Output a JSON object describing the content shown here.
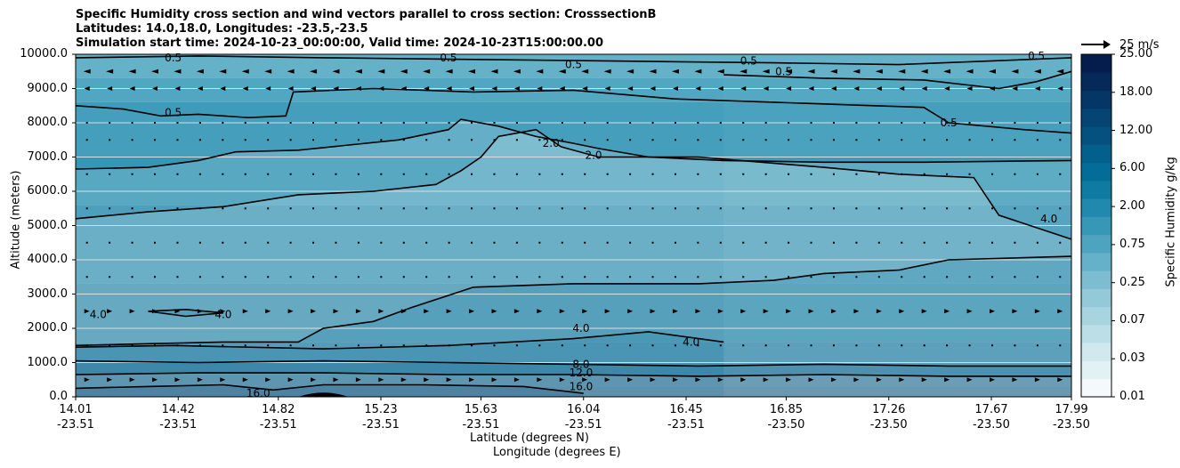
{
  "chart_data": {
    "type": "heatmap",
    "title_lines": [
      "Specific Humidity cross section and wind vectors parallel to cross section: CrosssectionB",
      "Latitudes: 14.0,18.0, Longitudes: -23.5,-23.5",
      "Simulation start time: 2024-10-23_00:00:00, Valid time: 2024-10-23T15:00:00.00"
    ],
    "xlabel_lines": [
      "Latitude (degrees N)",
      "Longitude (degrees E)"
    ],
    "ylabel": "Altitude (meters)",
    "x_tick_lat": [
      "14.01",
      "14.42",
      "14.82",
      "15.23",
      "15.63",
      "16.04",
      "16.45",
      "16.85",
      "17.26",
      "17.67",
      "17.99"
    ],
    "x_tick_lon": [
      "-23.51",
      "-23.51",
      "-23.51",
      "-23.51",
      "-23.51",
      "-23.51",
      "-23.51",
      "-23.50",
      "-23.50",
      "-23.50",
      "-23.50"
    ],
    "x_tick_values": [
      14.01,
      14.42,
      14.82,
      15.23,
      15.63,
      16.04,
      16.45,
      16.85,
      17.26,
      17.67,
      17.99
    ],
    "y_tick_labels": [
      "0.0",
      "1000.0",
      "2000.0",
      "3000.0",
      "4000.0",
      "5000.0",
      "6000.0",
      "7000.0",
      "8000.0",
      "9000.0",
      "10000.0"
    ],
    "y_tick_values": [
      0,
      1000,
      2000,
      3000,
      4000,
      5000,
      6000,
      7000,
      8000,
      9000,
      10000
    ],
    "xlim": [
      14.01,
      17.99
    ],
    "ylim": [
      0,
      10000
    ],
    "grid": "horizontal",
    "colorbar": {
      "label": "Specific Humidity g/kg",
      "tick_labels": [
        "0.01",
        "0.03",
        "0.07",
        "0.25",
        "0.75",
        "2.00",
        "6.00",
        "12.00",
        "18.00",
        "25.00"
      ],
      "levels": [
        "0.01",
        "0.02",
        "0.03",
        "0.05",
        "0.07",
        "0.1",
        "0.25",
        "0.5",
        "0.75",
        "1.0",
        "2.00",
        "4.0",
        "6.00",
        "8.0",
        "12.00",
        "16.0",
        "18.00",
        "20.0",
        "25.00"
      ],
      "colors": [
        "#f4fafb",
        "#e2f1f4",
        "#d0e8ee",
        "#bcdfe7",
        "#a8d4e0",
        "#93c9d9",
        "#7cbdd1",
        "#65b1c9",
        "#4ea4c0",
        "#3797b7",
        "#2289ae",
        "#0f7ba3",
        "#036d98",
        "#035f8c",
        "#045180",
        "#054473",
        "#053766",
        "#052a59",
        "#041d4d"
      ]
    },
    "vector_key": "25 m/s",
    "contour_labels": [
      {
        "text": "0.5",
        "x": 14.4,
        "y": 9900
      },
      {
        "text": "0.5",
        "x": 15.5,
        "y": 9900
      },
      {
        "text": "0.5",
        "x": 16.0,
        "y": 9700
      },
      {
        "text": "0.5",
        "x": 16.7,
        "y": 9800
      },
      {
        "text": "0.5",
        "x": 16.84,
        "y": 9500
      },
      {
        "text": "0.5",
        "x": 17.85,
        "y": 9950
      },
      {
        "text": "0.5",
        "x": 17.5,
        "y": 8000
      },
      {
        "text": "0.5",
        "x": 14.4,
        "y": 8300
      },
      {
        "text": "2.0",
        "x": 15.91,
        "y": 7400
      },
      {
        "text": "2.0",
        "x": 16.08,
        "y": 7050
      },
      {
        "text": "4.0",
        "x": 17.9,
        "y": 5200
      },
      {
        "text": "4.0",
        "x": 14.1,
        "y": 2400
      },
      {
        "text": "4.0",
        "x": 14.6,
        "y": 2400
      },
      {
        "text": "4.0",
        "x": 16.03,
        "y": 2000
      },
      {
        "text": "4.0",
        "x": 16.47,
        "y": 1600
      },
      {
        "text": "8.0",
        "x": 16.03,
        "y": 950
      },
      {
        "text": "12.0",
        "x": 16.03,
        "y": 700
      },
      {
        "text": "16.0",
        "x": 16.03,
        "y": 300
      },
      {
        "text": "16.0",
        "x": 14.74,
        "y": 100
      }
    ],
    "contours": [
      {
        "level": "0.5",
        "points": [
          [
            14.01,
            8500
          ],
          [
            14.2,
            8400
          ],
          [
            14.35,
            8200
          ],
          [
            14.5,
            8250
          ],
          [
            14.7,
            8150
          ],
          [
            14.85,
            8200
          ],
          [
            14.88,
            8900
          ],
          [
            15.2,
            9000
          ],
          [
            15.6,
            8900
          ],
          [
            16.0,
            8950
          ],
          [
            16.4,
            8700
          ],
          [
            16.8,
            8600
          ],
          [
            17.2,
            8500
          ],
          [
            17.4,
            8450
          ],
          [
            17.5,
            8000
          ],
          [
            17.8,
            7800
          ],
          [
            17.99,
            7700
          ]
        ]
      },
      {
        "level": "0.5",
        "points": [
          [
            16.6,
            9400
          ],
          [
            17.0,
            9300
          ],
          [
            17.4,
            9250
          ],
          [
            17.7,
            9000
          ],
          [
            17.85,
            9200
          ],
          [
            17.99,
            9500
          ]
        ]
      },
      {
        "level": "0.5",
        "points": [
          [
            14.01,
            9900
          ],
          [
            14.5,
            9950
          ],
          [
            15.0,
            9900
          ],
          [
            15.6,
            9850
          ],
          [
            16.2,
            9800
          ],
          [
            16.8,
            9750
          ],
          [
            17.3,
            9700
          ],
          [
            17.99,
            9900
          ]
        ]
      },
      {
        "level": "2.0",
        "points": [
          [
            14.01,
            6650
          ],
          [
            14.3,
            6700
          ],
          [
            14.5,
            6900
          ],
          [
            14.65,
            7150
          ],
          [
            14.9,
            7200
          ],
          [
            15.3,
            7500
          ],
          [
            15.5,
            7800
          ],
          [
            15.55,
            8100
          ],
          [
            15.7,
            7900
          ],
          [
            15.85,
            7600
          ],
          [
            16.0,
            7400
          ],
          [
            16.1,
            7250
          ],
          [
            16.3,
            7000
          ],
          [
            16.6,
            6900
          ],
          [
            17.0,
            6850
          ],
          [
            17.4,
            6850
          ],
          [
            17.99,
            6900
          ]
        ]
      },
      {
        "level": "2.0",
        "points": [
          [
            14.01,
            5200
          ],
          [
            14.3,
            5400
          ],
          [
            14.6,
            5550
          ],
          [
            14.9,
            5900
          ],
          [
            15.2,
            6000
          ],
          [
            15.45,
            6200
          ],
          [
            15.55,
            6600
          ],
          [
            15.63,
            7000
          ],
          [
            15.7,
            7600
          ],
          [
            15.85,
            7800
          ],
          [
            15.95,
            7300
          ],
          [
            16.1,
            7000
          ],
          [
            16.5,
            7000
          ],
          [
            17.0,
            6700
          ],
          [
            17.3,
            6500
          ],
          [
            17.6,
            6400
          ],
          [
            17.7,
            5300
          ],
          [
            17.99,
            4600
          ]
        ]
      },
      {
        "level": "4.0",
        "points": [
          [
            14.01,
            1500
          ],
          [
            14.3,
            1550
          ],
          [
            14.6,
            1600
          ],
          [
            14.9,
            1600
          ],
          [
            15.0,
            2000
          ],
          [
            15.2,
            2200
          ],
          [
            15.35,
            2600
          ],
          [
            15.6,
            3200
          ],
          [
            16.0,
            3300
          ],
          [
            16.5,
            3300
          ],
          [
            16.8,
            3400
          ],
          [
            17.0,
            3600
          ],
          [
            17.3,
            3700
          ],
          [
            17.5,
            4000
          ],
          [
            17.99,
            4100
          ]
        ]
      },
      {
        "level": "4.0",
        "points": [
          [
            14.01,
            1450
          ],
          [
            14.4,
            1500
          ],
          [
            15.0,
            1400
          ],
          [
            15.5,
            1500
          ],
          [
            16.0,
            1700
          ],
          [
            16.3,
            1900
          ],
          [
            16.5,
            1700
          ],
          [
            16.6,
            1600
          ]
        ]
      },
      {
        "level": "4.0",
        "points": [
          [
            14.3,
            2500
          ],
          [
            14.45,
            2550
          ],
          [
            14.6,
            2450
          ],
          [
            14.45,
            2350
          ],
          [
            14.3,
            2500
          ]
        ]
      },
      {
        "level": "8.0",
        "points": [
          [
            14.01,
            1050
          ],
          [
            14.5,
            1000
          ],
          [
            15.0,
            1050
          ],
          [
            15.5,
            1000
          ],
          [
            16.0,
            950
          ],
          [
            16.5,
            900
          ],
          [
            17.0,
            950
          ],
          [
            17.5,
            900
          ],
          [
            17.99,
            900
          ]
        ]
      },
      {
        "level": "12.0",
        "points": [
          [
            14.01,
            650
          ],
          [
            14.5,
            700
          ],
          [
            15.0,
            700
          ],
          [
            15.5,
            650
          ],
          [
            16.0,
            650
          ],
          [
            16.5,
            600
          ],
          [
            17.0,
            650
          ],
          [
            17.5,
            600
          ],
          [
            17.99,
            600
          ]
        ]
      },
      {
        "level": "16.0",
        "points": [
          [
            14.01,
            250
          ],
          [
            14.3,
            300
          ],
          [
            14.6,
            350
          ],
          [
            14.8,
            200
          ],
          [
            15.0,
            350
          ],
          [
            15.4,
            350
          ],
          [
            15.8,
            300
          ],
          [
            16.04,
            100
          ]
        ]
      }
    ],
    "wind_arrows": [
      {
        "z": 9500,
        "u": [
          -2,
          -2,
          -2,
          -2,
          -2,
          -2,
          -2,
          -2,
          -2,
          -2,
          -2,
          -2,
          -2,
          -2,
          -2,
          -2,
          -2,
          -2,
          -2,
          -2,
          -2,
          -2,
          -2,
          -2,
          -2,
          -2,
          -2,
          -2,
          -2,
          -2,
          -2,
          -2,
          -2,
          -2,
          -2,
          -2,
          -2,
          -2,
          -2,
          -2,
          -2,
          -2,
          -2,
          -2
        ]
      },
      {
        "z": 9000,
        "u": [
          -1,
          -1,
          -1,
          -1,
          -1,
          -1,
          -1,
          -1,
          -1,
          -1,
          -1,
          -1,
          -1,
          -1,
          -1,
          -1,
          -1,
          -1,
          -1,
          -1,
          -1,
          -1,
          -1,
          -1,
          -1,
          -1,
          -1,
          -1,
          -1,
          -1,
          -1,
          -1,
          -1,
          -1,
          -1,
          -1,
          -1,
          -1,
          -1,
          -1,
          -1,
          -1,
          -1,
          -1
        ]
      },
      {
        "z": 2500,
        "u": [
          1,
          1,
          1,
          1,
          1,
          1,
          1,
          1,
          1,
          1,
          1,
          1,
          1,
          1,
          1,
          1,
          1,
          1,
          1,
          1,
          1,
          1,
          1,
          1,
          1,
          1,
          1,
          1,
          1,
          1,
          1,
          1,
          1,
          1,
          1,
          1,
          1,
          1,
          1,
          1,
          1,
          1,
          1,
          1
        ]
      },
      {
        "z": 500,
        "u": [
          1,
          1,
          1,
          1,
          1,
          1,
          1,
          1,
          1,
          1,
          1,
          1,
          1,
          1,
          1,
          1,
          1,
          1,
          1,
          1,
          1,
          1,
          1,
          1,
          1,
          1,
          1,
          1,
          1,
          1,
          1,
          1,
          1,
          1,
          1,
          1,
          1,
          1,
          1,
          1,
          1,
          1,
          1,
          1
        ]
      }
    ]
  }
}
